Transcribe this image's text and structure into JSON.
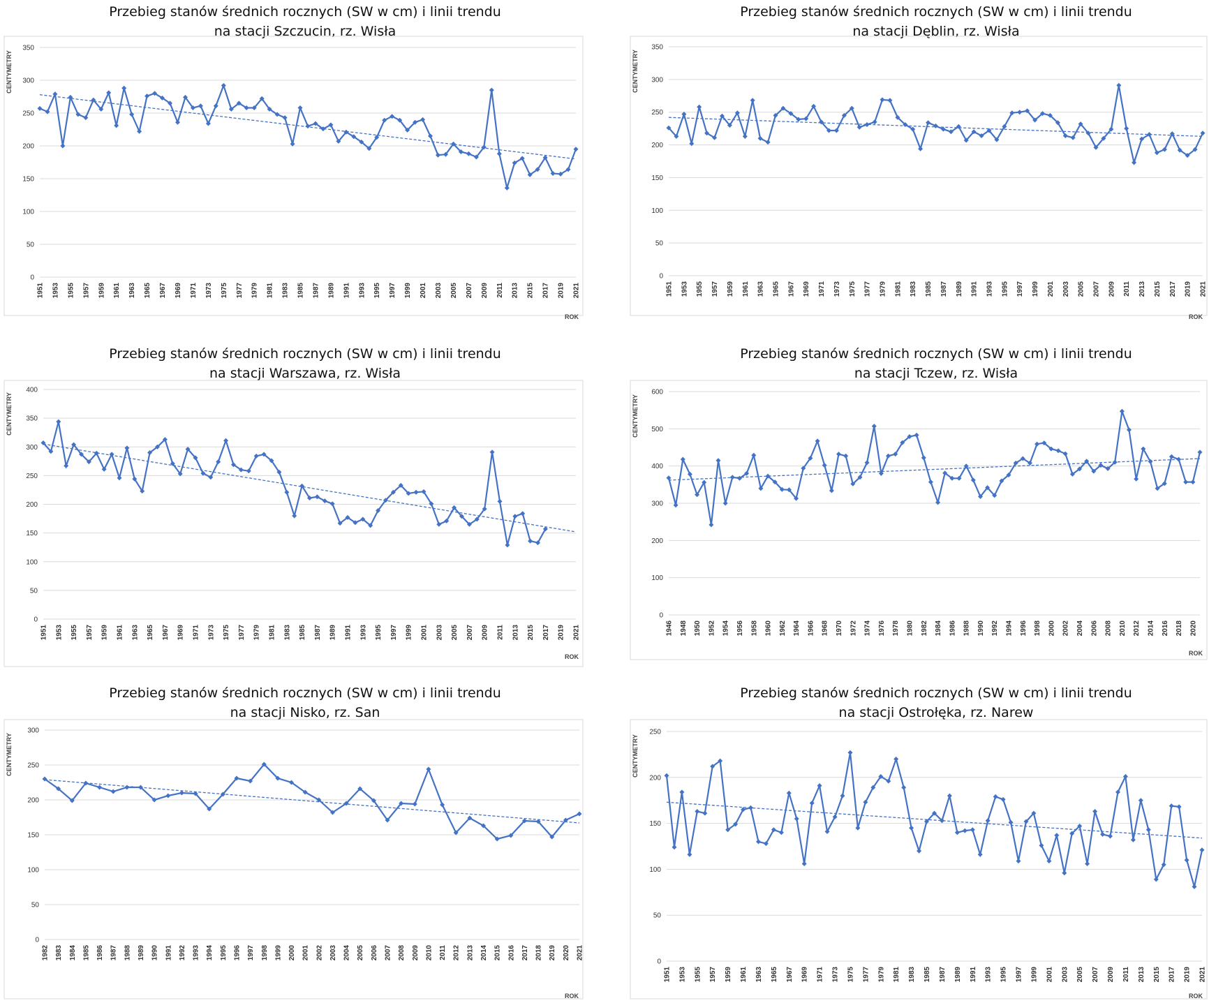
{
  "chart_data": [
    {
      "type": "line",
      "title": "Przebieg stanów średnich rocznych (SW w cm) i linii trendu",
      "subtitle": "na stacji Szczucin, rz. Wisła",
      "xlabel": "ROK",
      "ylabel": "CENTYMETRY",
      "ylim": [
        0,
        350
      ],
      "yticks": [
        0,
        50,
        100,
        150,
        200,
        250,
        300,
        350
      ],
      "grid": true,
      "x_start": 1951,
      "x_tick_step": 2,
      "series": [
        {
          "values": [
            257,
            252,
            279,
            200,
            274,
            248,
            243,
            270,
            256,
            281,
            231,
            288,
            248,
            222,
            276,
            280,
            273,
            265,
            236,
            274,
            258,
            261,
            234,
            261,
            292,
            256,
            265,
            258,
            258,
            272,
            256,
            248,
            243,
            203,
            258,
            230,
            234,
            226,
            232,
            207,
            221,
            214,
            206,
            196,
            213,
            239,
            245,
            239,
            224,
            236,
            240,
            215,
            186,
            187,
            203,
            191,
            188,
            183,
            198,
            285,
            188,
            136,
            174,
            181,
            156,
            164,
            182,
            158,
            157,
            164,
            195
          ]
        }
      ],
      "trend": [
        278,
        180
      ]
    },
    {
      "type": "line",
      "title": "Przebieg stanów średnich rocznych (SW w cm) i linii trendu",
      "subtitle": "na stacji Dęblin, rz. Wisła",
      "xlabel": "ROK",
      "ylabel": "CENTYMETRY",
      "ylim": [
        0,
        350
      ],
      "yticks": [
        0,
        50,
        100,
        150,
        200,
        250,
        300,
        350
      ],
      "grid": true,
      "x_start": 1951,
      "x_tick_step": 2,
      "series": [
        {
          "values": [
            226,
            213,
            247,
            202,
            258,
            218,
            211,
            244,
            230,
            249,
            213,
            268,
            210,
            204,
            245,
            256,
            248,
            239,
            240,
            259,
            235,
            222,
            222,
            245,
            256,
            227,
            231,
            235,
            269,
            268,
            242,
            231,
            224,
            194,
            234,
            229,
            224,
            220,
            228,
            207,
            220,
            214,
            222,
            208,
            228,
            249,
            250,
            252,
            238,
            248,
            245,
            234,
            214,
            211,
            232,
            218,
            196,
            210,
            224,
            291,
            225,
            173,
            209,
            216,
            188,
            193,
            217,
            192,
            184,
            193,
            218
          ]
        }
      ],
      "trend": [
        242,
        213
      ]
    },
    {
      "type": "line",
      "title": "Przebieg stanów średnich rocznych (SW w cm) i linii trendu",
      "subtitle": "na stacji Warszawa, rz. Wisła",
      "xlabel": "ROK",
      "ylabel": "CENTYMETRY",
      "ylim": [
        0,
        400
      ],
      "yticks": [
        0,
        50,
        100,
        150,
        200,
        250,
        300,
        350,
        400
      ],
      "grid": true,
      "x_start": 1951,
      "x_tick_step": 2,
      "series": [
        {
          "values": [
            307,
            292,
            344,
            267,
            304,
            287,
            274,
            289,
            261,
            287,
            246,
            298,
            244,
            223,
            290,
            300,
            313,
            271,
            253,
            296,
            281,
            254,
            247,
            274,
            311,
            269,
            260,
            258,
            284,
            287,
            276,
            256,
            221,
            180,
            232,
            211,
            213,
            206,
            201,
            167,
            177,
            168,
            174,
            163,
            189,
            207,
            221,
            233,
            219,
            221,
            222,
            201,
            165,
            171,
            194,
            179,
            165,
            174,
            192,
            291,
            205,
            129,
            179,
            184,
            136,
            133,
            157
          ]
        }
      ],
      "trend_points": [
        [
          1951,
          305
        ],
        [
          2021,
          152
        ]
      ]
    },
    {
      "type": "line",
      "title": "Przebieg stanów średnich rocznych (SW w cm) i linii trendu",
      "subtitle": "na stacji Tczew, rz. Wisła",
      "xlabel": "ROK",
      "ylabel": "CENTYMETRY",
      "ylim": [
        0,
        600
      ],
      "yticks": [
        0,
        100,
        200,
        300,
        400,
        500,
        600
      ],
      "grid": true,
      "x_start": 1946,
      "x_tick_step": 2,
      "series": [
        {
          "values": [
            368,
            295,
            418,
            378,
            323,
            356,
            242,
            415,
            300,
            370,
            367,
            380,
            429,
            340,
            373,
            357,
            337,
            336,
            313,
            394,
            421,
            467,
            402,
            334,
            432,
            427,
            352,
            370,
            409,
            507,
            380,
            427,
            432,
            463,
            479,
            483,
            422,
            357,
            302,
            381,
            367,
            367,
            400,
            362,
            318,
            342,
            321,
            360,
            376,
            408,
            420,
            408,
            459,
            462,
            446,
            441,
            433,
            378,
            392,
            413,
            386,
            402,
            393,
            410,
            547,
            497,
            365,
            446,
            412,
            340,
            353,
            425,
            418,
            357,
            357,
            437
          ]
        }
      ],
      "trend": [
        362,
        420
      ]
    },
    {
      "type": "line",
      "title": "Przebieg stanów średnich rocznych (SW w cm) i linii trendu",
      "subtitle": "na stacji Nisko, rz. San",
      "xlabel": "ROK",
      "ylabel": "CENTYMETRY",
      "ylim": [
        0,
        300
      ],
      "yticks": [
        0,
        50,
        100,
        150,
        200,
        250,
        300
      ],
      "grid": true,
      "x_start": 1982,
      "x_tick_step": 1,
      "series": [
        {
          "values": [
            230,
            216,
            199,
            224,
            218,
            212,
            218,
            218,
            200,
            206,
            210,
            209,
            187,
            208,
            231,
            227,
            251,
            231,
            225,
            211,
            200,
            182,
            195,
            216,
            199,
            171,
            195,
            194,
            244,
            193,
            153,
            174,
            163,
            144,
            149,
            170,
            169,
            147,
            171,
            180
          ]
        }
      ],
      "trend": [
        229,
        167
      ]
    },
    {
      "type": "line",
      "title": "Przebieg stanów średnich rocznych (SW w cm) i linii trendu",
      "subtitle": "na stacji Ostrołęka, rz. Narew",
      "xlabel": "ROK",
      "ylabel": "CENTYMETRY",
      "ylim": [
        0,
        250
      ],
      "yticks": [
        0,
        50,
        100,
        150,
        200,
        250
      ],
      "grid": true,
      "x_start": 1951,
      "x_tick_step": 2,
      "series": [
        {
          "values": [
            202,
            124,
            184,
            116,
            163,
            161,
            212,
            218,
            143,
            149,
            165,
            167,
            130,
            128,
            143,
            140,
            183,
            155,
            106,
            172,
            191,
            141,
            157,
            180,
            227,
            145,
            173,
            189,
            201,
            196,
            220,
            189,
            145,
            120,
            152,
            161,
            153,
            180,
            140,
            142,
            143,
            116,
            153,
            179,
            176,
            151,
            109,
            152,
            161,
            126,
            109,
            137,
            96,
            139,
            147,
            106,
            163,
            138,
            136,
            184,
            201,
            132,
            175,
            143,
            89,
            105,
            169,
            168,
            110,
            81,
            121
          ]
        }
      ],
      "trend": [
        173,
        134
      ]
    }
  ],
  "colors": {
    "line": "#4472c4",
    "trend": "#4472c4",
    "grid": "#d9d9d9"
  }
}
